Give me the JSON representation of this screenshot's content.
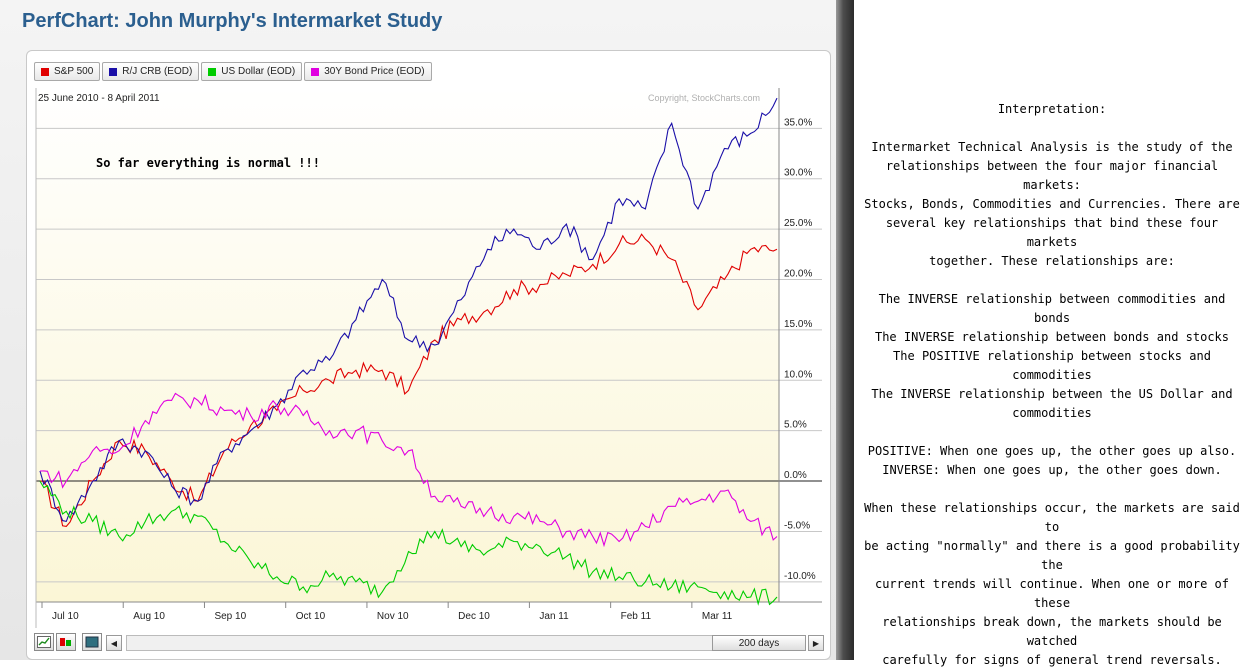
{
  "page": {
    "title": "PerfChart: John Murphy's Intermarket Study"
  },
  "chart": {
    "date_range": "25 June 2010 - 8 April 2011",
    "copyright": "Copyright, StockCharts.com",
    "annotation": "So far everything is normal !!!",
    "legend": [
      {
        "label": "S&P 500",
        "color": "#e00000"
      },
      {
        "label": "R/J CRB (EOD)",
        "color": "#1a0fa8"
      },
      {
        "label": "US Dollar (EOD)",
        "color": "#00cc00"
      },
      {
        "label": "30Y Bond Price (EOD)",
        "color": "#e000e0"
      }
    ],
    "controls": {
      "days_label": "200 days",
      "scroll_left": "◀",
      "scroll_right": "▶"
    }
  },
  "chart_data": {
    "type": "line",
    "x": [
      "Jun 25",
      "Jul 10",
      "Jul 20",
      "Aug 1",
      "Aug 10",
      "Aug 20",
      "Sep 1",
      "Sep 10",
      "Sep 20",
      "Oct 1",
      "Oct 10",
      "Oct 20",
      "Nov 1",
      "Nov 10",
      "Nov 20",
      "Dec 1",
      "Dec 10",
      "Dec 20",
      "Jan 1",
      "Jan 11",
      "Jan 20",
      "Feb 1",
      "Feb 11",
      "Feb 20",
      "Mar 1",
      "Mar 11",
      "Mar 20",
      "Apr 1",
      "Apr 8"
    ],
    "x_tick_labels": [
      "Jul 10",
      "Aug 10",
      "Sep 10",
      "Oct 10",
      "Nov 10",
      "Dec 10",
      "Jan 11",
      "Feb 11",
      "Mar 11"
    ],
    "y_tick_labels": [
      "35.0%",
      "30.0%",
      "25.0%",
      "20.0%",
      "15.0%",
      "10.0%",
      "5.0%",
      "0.0%",
      "-5.0%",
      "-10.0%"
    ],
    "ylim": [
      -12,
      39
    ],
    "y_unit": "%",
    "series": [
      {
        "name": "S&P 500",
        "color": "#e00000",
        "values": [
          0,
          -4.5,
          0,
          4,
          3,
          0,
          -2,
          3,
          5.5,
          7,
          9,
          10,
          11,
          11,
          9,
          14,
          16,
          17,
          19,
          19.5,
          20.5,
          21.5,
          23.5,
          24,
          22,
          17,
          20,
          23,
          23
        ]
      },
      {
        "name": "R/J CRB (EOD)",
        "color": "#1a0fa8",
        "values": [
          1,
          -4,
          0,
          4,
          3,
          -0.5,
          -2,
          3,
          5,
          7.5,
          11,
          12,
          16,
          20,
          14,
          13.5,
          18,
          23,
          25,
          23,
          25.5,
          22,
          28,
          27,
          35.5,
          27,
          33,
          34.5,
          38
        ]
      },
      {
        "name": "US Dollar (EOD)",
        "color": "#00cc00",
        "values": [
          0,
          -3,
          -4,
          -5.5,
          -4,
          -3,
          -3.5,
          -6,
          -8,
          -9.5,
          -10.5,
          -9.5,
          -10,
          -11,
          -7,
          -5,
          -6.5,
          -7,
          -6,
          -6.5,
          -7.5,
          -9,
          -9.5,
          -10,
          -10.5,
          -10.5,
          -11,
          -11.5,
          -11.5
        ]
      },
      {
        "name": "30Y Bond Price (EOD)",
        "color": "#e000e0",
        "values": [
          1,
          0,
          3,
          3,
          6,
          8,
          8,
          7,
          6.5,
          7.5,
          6.5,
          5,
          5,
          4,
          3,
          -1.5,
          -2.5,
          -3,
          -3.5,
          -4,
          -5,
          -5.5,
          -6,
          -4.5,
          -2.5,
          -2,
          -1,
          -4,
          -5.5
        ]
      }
    ]
  },
  "interpretation": {
    "heading": "Interpretation:",
    "intro": [
      "Intermarket Technical Analysis is the study of the",
      "relationships between the four major financial markets:",
      "Stocks, Bonds, Commodities and Currencies. There are",
      "several key relationships that bind these four markets",
      "together. These relationships are:"
    ],
    "relationships": [
      "The INVERSE relationship between commodities and",
      "bonds",
      "The INVERSE relationship between bonds and stocks",
      "The POSITIVE relationship between stocks and",
      "commodities",
      "The INVERSE relationship between the US Dollar and",
      "commodities"
    ],
    "definitions": [
      "POSITIVE: When one goes up, the other goes up also.",
      "INVERSE: When one goes up, the other goes down."
    ],
    "conclusion": [
      "When these relationships occur, the markets are said to",
      "be acting \"normally\" and there is a good probability the",
      "current trends will continue. When one or more of these",
      "relationships break down, the markets should be watched",
      "carefully for signs of general trend reversals."
    ]
  }
}
